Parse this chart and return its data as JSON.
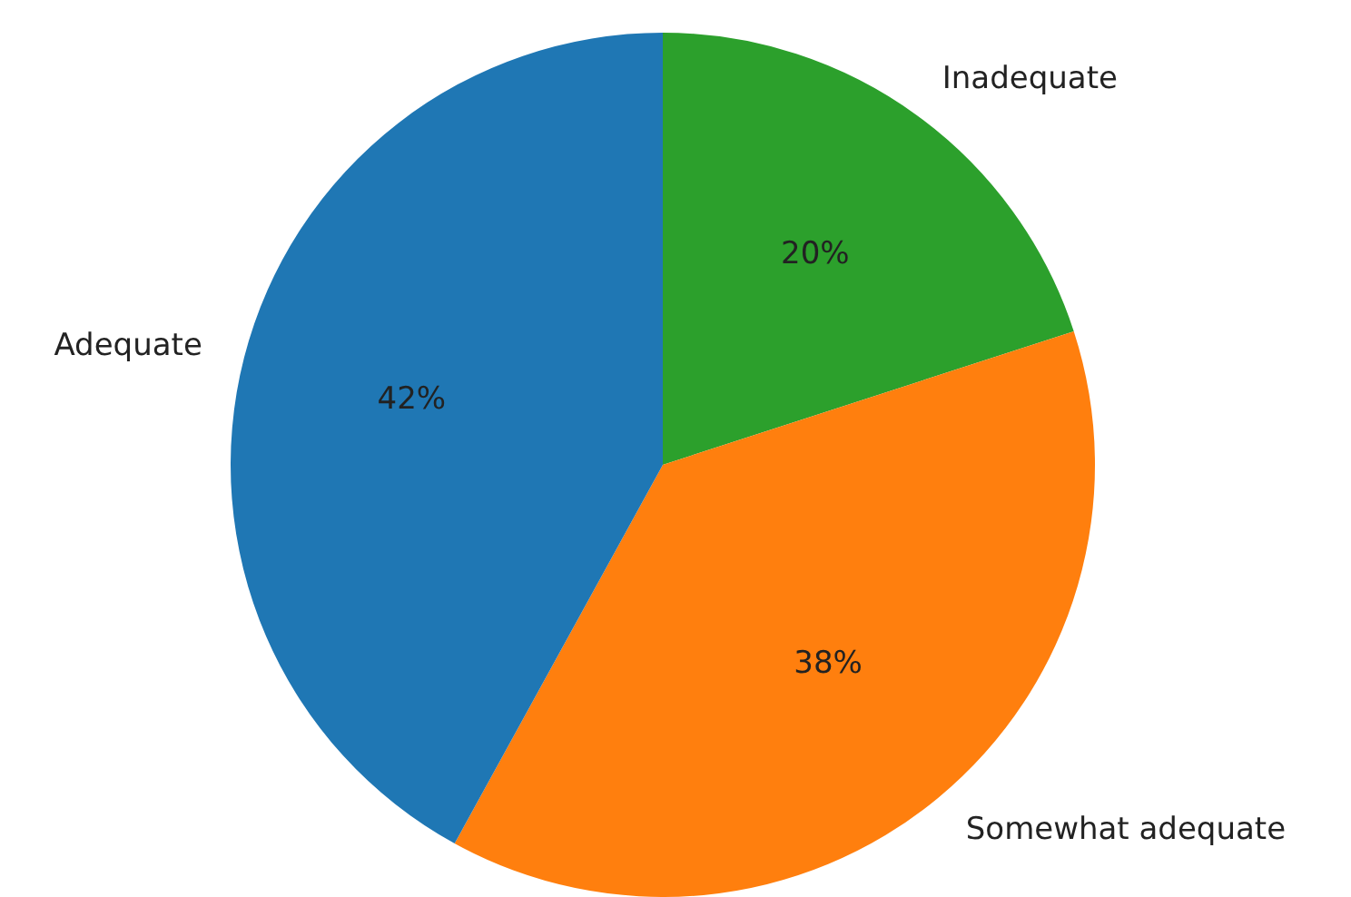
{
  "chart_data": {
    "type": "pie",
    "categories": [
      "Inadequate",
      "Somewhat adequate",
      "Adequate"
    ],
    "values": [
      20,
      38,
      42
    ],
    "colors": [
      "#2ca02c",
      "#ff7f0e",
      "#1f77b4"
    ],
    "value_labels": [
      "20%",
      "38%",
      "42%"
    ],
    "legend": false
  }
}
